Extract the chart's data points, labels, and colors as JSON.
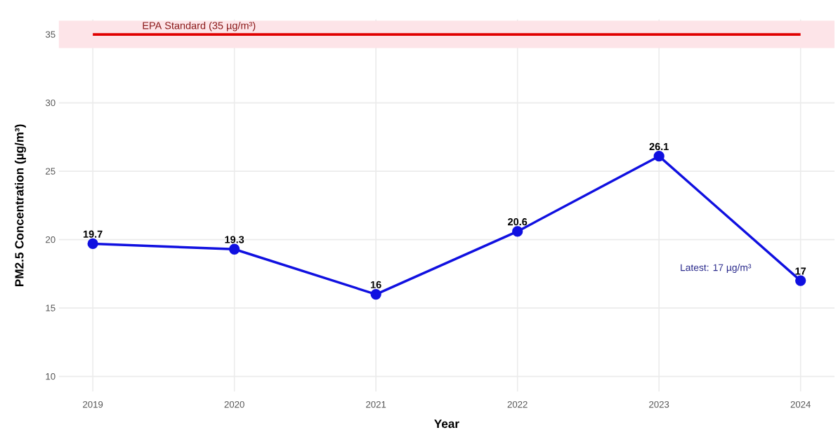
{
  "chart_data": {
    "type": "line",
    "xlabel": "Year",
    "ylabel": "PM2.5 Concentration (µg/m³)",
    "categories": [
      "2019",
      "2020",
      "2021",
      "2022",
      "2023",
      "2024"
    ],
    "series": [
      {
        "color": "#1010e0",
        "values": [
          19.7,
          19.3,
          16,
          20.6,
          26.1,
          17
        ]
      }
    ],
    "ylim": [
      8.9,
      36.1
    ],
    "yticks": [
      10,
      15,
      20,
      25,
      30,
      35
    ],
    "ref_lines": [
      {
        "axis": "y",
        "value": 35,
        "label": "EPA Standard (35 µg/m³)",
        "color": "#e00000",
        "line_style": "solid"
      }
    ],
    "bands": [
      {
        "axis": "y",
        "from": 34,
        "to": 36,
        "color": "#fde4e8"
      }
    ],
    "annotations": [
      "Latest: 17 µg/m³"
    ],
    "data_labels": true,
    "grid": true,
    "marker": "circle",
    "line_style": "solid"
  }
}
